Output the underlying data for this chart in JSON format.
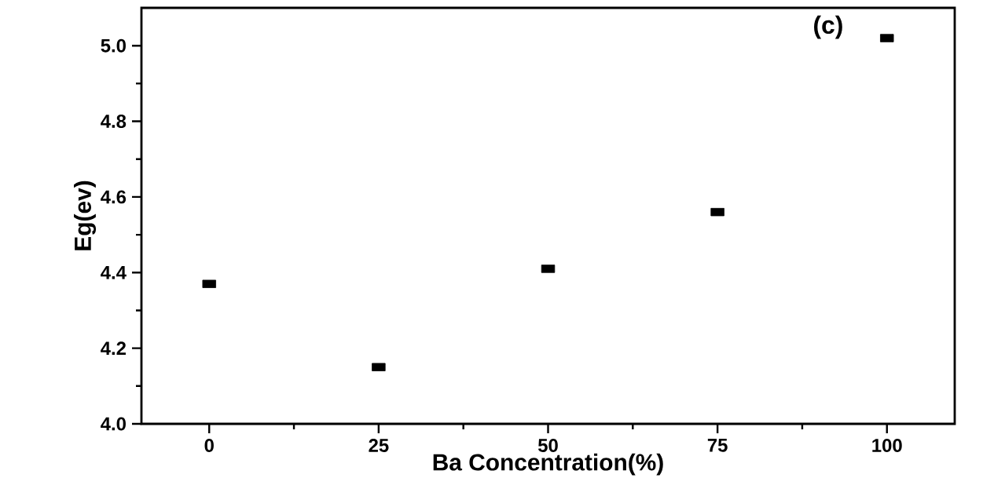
{
  "chart_data": {
    "type": "scatter",
    "xlabel": "Ba Concentration(%)",
    "ylabel": "Eg(ev)",
    "annotations": [
      "(c)"
    ],
    "x": [
      0,
      25,
      50,
      75,
      100
    ],
    "series": [
      {
        "color": "#000000",
        "values": [
          4.37,
          4.15,
          4.41,
          4.56,
          5.02
        ]
      }
    ],
    "xlim": [
      -10,
      110
    ],
    "xticks": [
      0,
      25,
      50,
      75,
      100
    ],
    "ylim": [
      4.0,
      5.1
    ],
    "yticks": [
      {
        "value": 4.0,
        "label": "4.0"
      },
      {
        "value": 4.2,
        "label": "4.2"
      },
      {
        "value": 4.4,
        "label": "4.4"
      },
      {
        "value": 4.6,
        "label": "4.6"
      },
      {
        "value": 4.8,
        "label": "4.8"
      },
      {
        "value": 5.0,
        "label": "5.0"
      }
    ],
    "marker": "square",
    "grid": false
  }
}
